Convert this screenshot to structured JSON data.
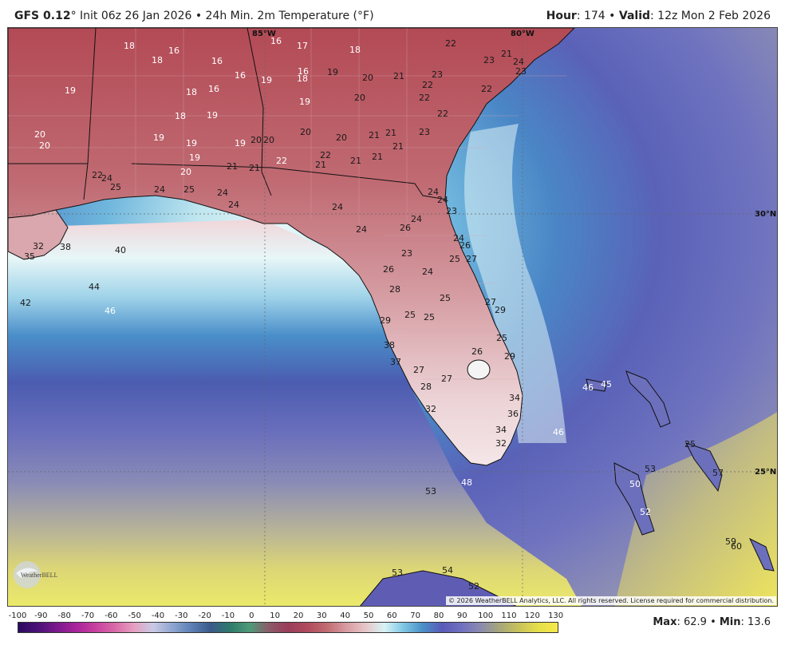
{
  "header": {
    "model": "GFS 0.12",
    "init_text": "° Init 06z 26 Jan 2026 • 24h Min. 2m Temperature (°F)",
    "hour_label": "Hour",
    "hour_value": ": 174 • ",
    "valid_label": "Valid",
    "valid_value": ": 12z Mon 2 Feb 2026"
  },
  "map": {
    "coord_labels": {
      "lon_85": "85°W",
      "lon_80": "80°W",
      "lat_30": "30°N",
      "lat_25": "25°N"
    },
    "temperature_labels": [
      {
        "t": "18",
        "c": "light"
      },
      {
        "t": "16",
        "c": "light"
      },
      {
        "t": "17",
        "c": "light"
      },
      {
        "t": "16",
        "c": "light"
      },
      {
        "t": "16",
        "c": "light"
      },
      {
        "t": "16",
        "c": "light"
      },
      {
        "t": "16",
        "c": "light"
      },
      {
        "t": "18",
        "c": "light"
      },
      {
        "t": "22",
        "c": "dark"
      },
      {
        "t": "21",
        "c": "dark"
      },
      {
        "t": "23",
        "c": "dark"
      },
      {
        "t": "24",
        "c": "dark"
      },
      {
        "t": "23",
        "c": "dark"
      },
      {
        "t": "19",
        "c": "light"
      },
      {
        "t": "18",
        "c": "light"
      },
      {
        "t": "16",
        "c": "light"
      },
      {
        "t": "19",
        "c": "light"
      },
      {
        "t": "18",
        "c": "light"
      },
      {
        "t": "19",
        "c": "dark"
      },
      {
        "t": "20",
        "c": "dark"
      },
      {
        "t": "21",
        "c": "dark"
      },
      {
        "t": "23",
        "c": "dark"
      },
      {
        "t": "22",
        "c": "dark"
      },
      {
        "t": "22",
        "c": "dark"
      },
      {
        "t": "18",
        "c": "light"
      },
      {
        "t": "18",
        "c": "light"
      },
      {
        "t": "19",
        "c": "light"
      },
      {
        "t": "19",
        "c": "light"
      },
      {
        "t": "20",
        "c": "dark"
      },
      {
        "t": "22",
        "c": "dark"
      },
      {
        "t": "20",
        "c": "light"
      },
      {
        "t": "20",
        "c": "light"
      },
      {
        "t": "19",
        "c": "light"
      },
      {
        "t": "19",
        "c": "light"
      },
      {
        "t": "19",
        "c": "light"
      },
      {
        "t": "20",
        "c": "dark"
      },
      {
        "t": "20",
        "c": "dark"
      },
      {
        "t": "20",
        "c": "dark"
      },
      {
        "t": "20",
        "c": "dark"
      },
      {
        "t": "21",
        "c": "dark"
      },
      {
        "t": "23",
        "c": "dark"
      },
      {
        "t": "21",
        "c": "dark"
      },
      {
        "t": "21",
        "c": "dark"
      },
      {
        "t": "22",
        "c": "dark"
      },
      {
        "t": "19",
        "c": "light"
      },
      {
        "t": "20",
        "c": "light"
      },
      {
        "t": "22",
        "c": "light"
      },
      {
        "t": "22",
        "c": "dark"
      },
      {
        "t": "21",
        "c": "dark"
      },
      {
        "t": "21",
        "c": "dark"
      },
      {
        "t": "21",
        "c": "dark"
      },
      {
        "t": "21",
        "c": "dark"
      },
      {
        "t": "21",
        "c": "dark"
      },
      {
        "t": "22",
        "c": "dark"
      },
      {
        "t": "24",
        "c": "dark"
      },
      {
        "t": "25",
        "c": "dark"
      },
      {
        "t": "24",
        "c": "dark"
      },
      {
        "t": "25",
        "c": "dark"
      },
      {
        "t": "24",
        "c": "dark"
      },
      {
        "t": "24",
        "c": "dark"
      },
      {
        "t": "24",
        "c": "dark"
      },
      {
        "t": "24",
        "c": "dark"
      },
      {
        "t": "26",
        "c": "dark"
      },
      {
        "t": "24",
        "c": "dark"
      },
      {
        "t": "24",
        "c": "dark"
      },
      {
        "t": "23",
        "c": "dark"
      },
      {
        "t": "24",
        "c": "dark"
      },
      {
        "t": "35",
        "c": "dark"
      },
      {
        "t": "32",
        "c": "dark"
      },
      {
        "t": "38",
        "c": "dark"
      },
      {
        "t": "40",
        "c": "dark"
      },
      {
        "t": "24",
        "c": "dark"
      },
      {
        "t": "26",
        "c": "dark"
      },
      {
        "t": "25",
        "c": "dark"
      },
      {
        "t": "27",
        "c": "dark"
      },
      {
        "t": "23",
        "c": "dark"
      },
      {
        "t": "42",
        "c": "dark"
      },
      {
        "t": "44",
        "c": "dark"
      },
      {
        "t": "46",
        "c": "light"
      },
      {
        "t": "26",
        "c": "dark"
      },
      {
        "t": "24",
        "c": "dark"
      },
      {
        "t": "28",
        "c": "dark"
      },
      {
        "t": "25",
        "c": "dark"
      },
      {
        "t": "27",
        "c": "dark"
      },
      {
        "t": "29",
        "c": "dark"
      },
      {
        "t": "25",
        "c": "dark"
      },
      {
        "t": "25",
        "c": "dark"
      },
      {
        "t": "29",
        "c": "dark"
      },
      {
        "t": "38",
        "c": "dark"
      },
      {
        "t": "26",
        "c": "dark"
      },
      {
        "t": "25",
        "c": "dark"
      },
      {
        "t": "29",
        "c": "dark"
      },
      {
        "t": "37",
        "c": "dark"
      },
      {
        "t": "27",
        "c": "dark"
      },
      {
        "t": "27",
        "c": "dark"
      },
      {
        "t": "28",
        "c": "dark"
      },
      {
        "t": "46",
        "c": "light"
      },
      {
        "t": "45",
        "c": "light"
      },
      {
        "t": "34",
        "c": "dark"
      },
      {
        "t": "32",
        "c": "dark"
      },
      {
        "t": "36",
        "c": "dark"
      },
      {
        "t": "46",
        "c": "light"
      },
      {
        "t": "34",
        "c": "dark"
      },
      {
        "t": "32",
        "c": "dark"
      },
      {
        "t": "25",
        "c": "dark"
      },
      {
        "t": "53",
        "c": "dark"
      },
      {
        "t": "53",
        "c": "dark"
      },
      {
        "t": "48",
        "c": "light"
      },
      {
        "t": "50",
        "c": "light"
      },
      {
        "t": "52",
        "c": "light"
      },
      {
        "t": "57",
        "c": "dark"
      },
      {
        "t": "60",
        "c": "dark"
      },
      {
        "t": "59",
        "c": "dark"
      },
      {
        "t": "53",
        "c": "dark"
      },
      {
        "t": "54",
        "c": "dark"
      },
      {
        "t": "52",
        "c": "dark"
      }
    ]
  },
  "logo": {
    "text": "WeatherBELL"
  },
  "copyright": "© 2026 WeatherBELL Analytics, LLC. All rights reserved. License required for commercial distribution.",
  "colorbar": {
    "ticks": [
      "-100",
      "-90",
      "-80",
      "-70",
      "-60",
      "-50",
      "-40",
      "-30",
      "-20",
      "-10",
      "0",
      "10",
      "20",
      "30",
      "40",
      "50",
      "60",
      "70",
      "80",
      "90",
      "100",
      "110",
      "120",
      "130"
    ],
    "stops": [
      "#2b0a5e",
      "#4a1278",
      "#7a1a8c",
      "#a8239b",
      "#c8409e",
      "#d86aa8",
      "#e69fc0",
      "#c9c9e6",
      "#8ea5cf",
      "#5d7fb5",
      "#3a5a8a",
      "#2f7a6a",
      "#4d9a78",
      "#8a5c6a",
      "#9a3d5a",
      "#b04a5e",
      "#c06a70",
      "#d69aa0",
      "#e6c5c8",
      "#d8f3f5",
      "#7fc6e3",
      "#4a8fc8",
      "#5a5ab8",
      "#7070c0",
      "#8a8ab0",
      "#a7a77a",
      "#c9c25a",
      "#e6df4a",
      "#f5e84a"
    ]
  },
  "stats": {
    "max_label": "Max",
    "max_value": ": 62.9 • ",
    "min_label": "Min",
    "min_value": ": 13.6"
  }
}
